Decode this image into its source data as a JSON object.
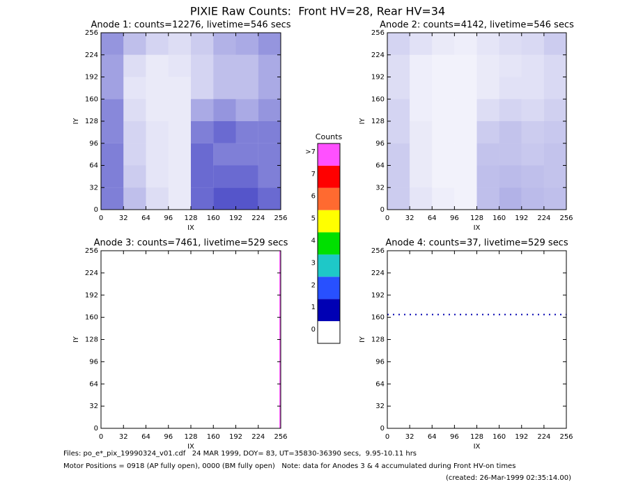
{
  "title": "PIXIE Raw Counts:  Front HV=28, Rear HV=34",
  "chart_data": [
    {
      "type": "heatmap",
      "title": "Anode 1: counts=12276, livetime=546 secs",
      "xlabel": "IX",
      "ylabel": "IY",
      "xlim": [
        0,
        256
      ],
      "ylim": [
        0,
        256
      ],
      "xticks": [
        0,
        32,
        64,
        96,
        128,
        160,
        192,
        224,
        256
      ],
      "yticks": [
        0,
        32,
        64,
        96,
        128,
        160,
        192,
        224,
        256
      ],
      "color": "#0000b0",
      "density": [
        [
          30,
          15,
          8,
          5,
          35,
          40,
          40,
          35
        ],
        [
          30,
          12,
          6,
          5,
          35,
          35,
          35,
          30
        ],
        [
          30,
          10,
          6,
          5,
          35,
          30,
          30,
          30
        ],
        [
          28,
          10,
          6,
          5,
          30,
          35,
          30,
          30
        ],
        [
          28,
          8,
          5,
          5,
          20,
          25,
          20,
          25
        ],
        [
          22,
          6,
          5,
          5,
          10,
          15,
          15,
          20
        ],
        [
          22,
          8,
          5,
          6,
          10,
          15,
          15,
          20
        ],
        [
          25,
          15,
          10,
          8,
          12,
          18,
          20,
          25
        ]
      ]
    },
    {
      "type": "heatmap",
      "title": "Anode 2: counts=4142, livetime=546 secs",
      "xlabel": "IX",
      "ylabel": "IY",
      "xlim": [
        0,
        256
      ],
      "ylim": [
        0,
        256
      ],
      "xticks": [
        0,
        32,
        64,
        96,
        128,
        160,
        192,
        224,
        256
      ],
      "yticks": [
        0,
        32,
        64,
        96,
        128,
        160,
        192,
        224,
        256
      ],
      "color": "#0000b0",
      "density": [
        [
          12,
          6,
          4,
          3,
          15,
          18,
          16,
          15
        ],
        [
          12,
          5,
          3,
          3,
          15,
          16,
          15,
          14
        ],
        [
          12,
          5,
          3,
          3,
          14,
          14,
          13,
          14
        ],
        [
          10,
          5,
          3,
          3,
          12,
          14,
          12,
          13
        ],
        [
          10,
          4,
          3,
          3,
          8,
          10,
          9,
          11
        ],
        [
          8,
          4,
          3,
          3,
          5,
          7,
          7,
          9
        ],
        [
          8,
          4,
          3,
          3,
          5,
          6,
          7,
          9
        ],
        [
          10,
          7,
          5,
          4,
          6,
          8,
          9,
          12
        ]
      ]
    },
    {
      "type": "heatmap",
      "title": "Anode 3: counts=7461, livetime=529 secs",
      "xlabel": "IX",
      "ylabel": "IY",
      "xlim": [
        0,
        256
      ],
      "ylim": [
        0,
        256
      ],
      "xticks": [
        0,
        32,
        64,
        96,
        128,
        160,
        192,
        224,
        256
      ],
      "yticks": [
        0,
        32,
        64,
        96,
        128,
        160,
        192,
        224,
        256
      ],
      "stripes": [
        {
          "x": 255,
          "color": "#ff66ff"
        }
      ]
    },
    {
      "type": "heatmap",
      "title": "Anode 4: counts=37, livetime=529 secs",
      "xlabel": "IX",
      "ylabel": "IY",
      "xlim": [
        0,
        256
      ],
      "ylim": [
        0,
        256
      ],
      "xticks": [
        0,
        32,
        64,
        96,
        128,
        160,
        192,
        224,
        256
      ],
      "yticks": [
        0,
        32,
        64,
        96,
        128,
        160,
        192,
        224,
        256
      ],
      "stripes": [
        {
          "y": 164,
          "color": "#0000b0"
        }
      ]
    }
  ],
  "colorbar": {
    "title": "Counts",
    "labels": [
      "0",
      "1",
      "2",
      "3",
      "4",
      "5",
      "6",
      "7",
      ">7"
    ],
    "colors": [
      "#ffffff",
      "#0000b4",
      "#2850ff",
      "#1ec8c8",
      "#00e000",
      "#ffff00",
      "#ff6a30",
      "#ff0000",
      "#ff50ff"
    ]
  },
  "footer": [
    "Files: po_e*_pix_19990324_v01.cdf   24 MAR 1999, DOY= 83, UT=35830-36390 secs,  9.95-10.11 hrs",
    "Motor Positions = 0918 (AP fully open), 0000 (BM fully open)   Note: data for Anodes 3 & 4 accumulated during Front HV-on times",
    "(created: 26-Mar-1999 02:35:14.00)"
  ]
}
